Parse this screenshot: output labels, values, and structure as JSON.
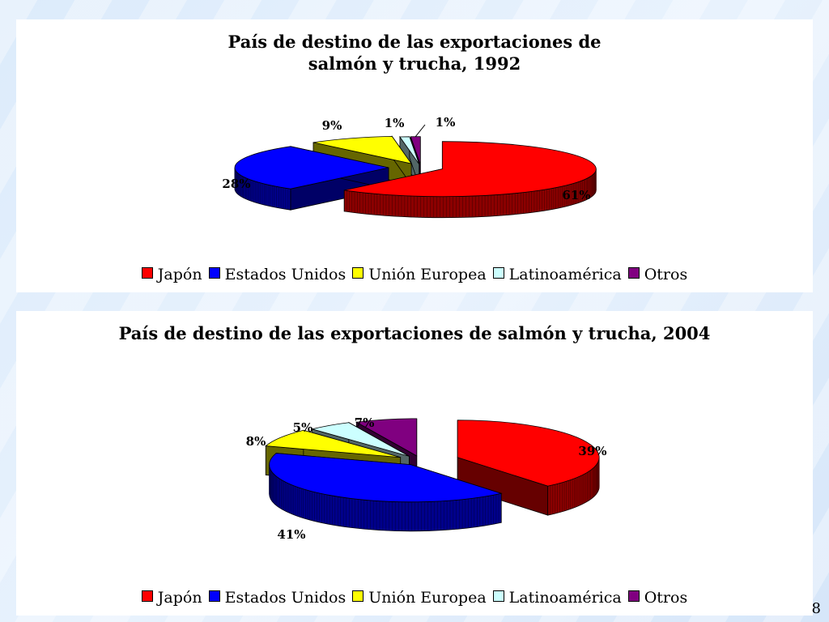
{
  "slide": {
    "page_number": "8"
  },
  "chart_data": [
    {
      "type": "pie",
      "title": "País de destino de las exportaciones de salmón y trucha, 1992",
      "categories": [
        "Japón",
        "Estados Unidos",
        "Unión Europea",
        "Latinoamérica",
        "Otros"
      ],
      "values": [
        61,
        28,
        9,
        1,
        1
      ],
      "data_labels": [
        "61%",
        "28%",
        "9%",
        "1%",
        "1%"
      ],
      "colors": [
        "#ff0000",
        "#0000ff",
        "#ffff00",
        "#ccffff",
        "#800080"
      ],
      "exploded": true,
      "three_d": true,
      "legend_position": "bottom"
    },
    {
      "type": "pie",
      "title": "País de destino de las exportaciones de salmón y trucha, 2004",
      "categories": [
        "Japón",
        "Estados Unidos",
        "Unión Europea",
        "Latinoamérica",
        "Otros"
      ],
      "values": [
        39,
        41,
        8,
        5,
        7
      ],
      "data_labels": [
        "39%",
        "41%",
        "8%",
        "5%",
        "7%"
      ],
      "colors": [
        "#ff0000",
        "#0000ff",
        "#ffff00",
        "#ccffff",
        "#800080"
      ],
      "exploded": true,
      "three_d": true,
      "legend_position": "bottom"
    }
  ]
}
